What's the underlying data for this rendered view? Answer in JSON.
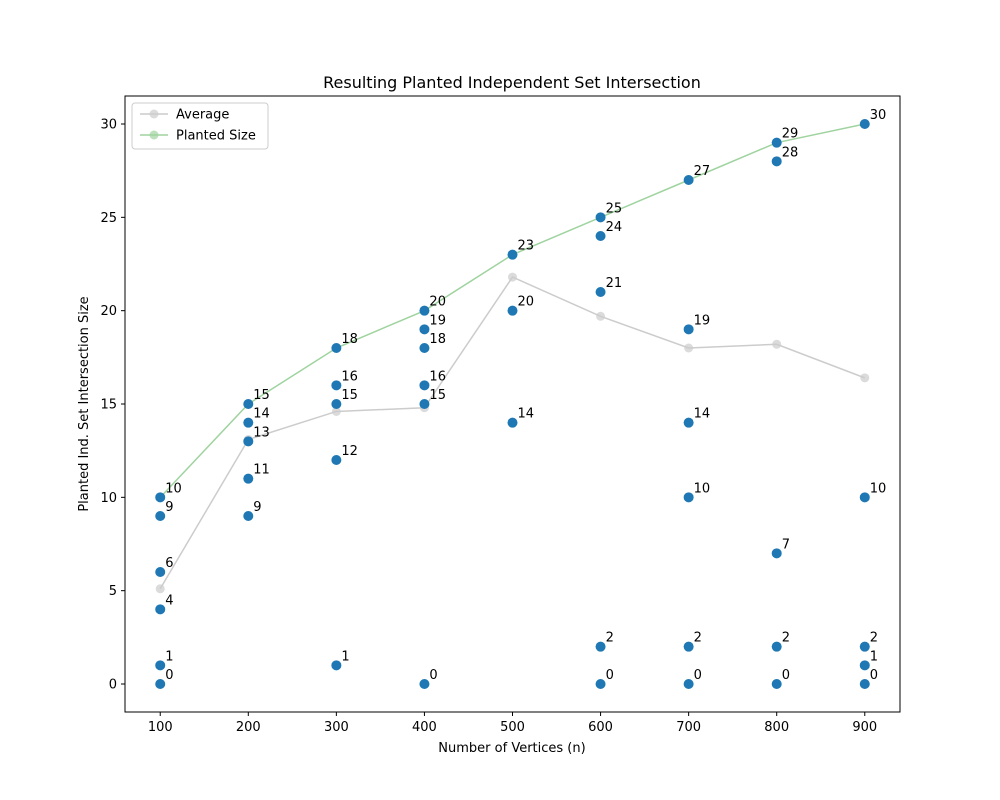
{
  "chart_data": {
    "type": "scatter",
    "title": "Resulting Planted Independent Set Intersection",
    "xlabel": "Number of Vertices (n)",
    "ylabel": "Planted Ind. Set Intersection Size",
    "xlim": [
      60,
      940
    ],
    "ylim": [
      -1.5,
      31.5
    ],
    "x_ticks": [
      100,
      200,
      300,
      400,
      500,
      600,
      700,
      800,
      900
    ],
    "y_ticks": [
      0,
      5,
      10,
      15,
      20,
      25,
      30
    ],
    "legend_position": "upper-left",
    "grid": false,
    "point_color": "#1f77b4",
    "series": [
      {
        "name": "Average",
        "type": "line",
        "color": "#cccccc",
        "x": [
          100,
          200,
          300,
          400,
          500,
          600,
          700,
          800,
          900
        ],
        "values": [
          5.1,
          13.1,
          14.6,
          14.8,
          21.8,
          19.7,
          18.0,
          18.2,
          16.4
        ]
      },
      {
        "name": "Planted Size",
        "type": "line",
        "color": "#9fd39f",
        "x": [
          100,
          200,
          300,
          400,
          500,
          600,
          700,
          800,
          900
        ],
        "values": [
          10,
          15,
          18,
          20,
          23,
          25,
          27,
          29,
          30
        ]
      }
    ],
    "points": [
      {
        "x": 100,
        "y": 10
      },
      {
        "x": 100,
        "y": 9
      },
      {
        "x": 100,
        "y": 6
      },
      {
        "x": 100,
        "y": 4
      },
      {
        "x": 100,
        "y": 1
      },
      {
        "x": 100,
        "y": 0
      },
      {
        "x": 200,
        "y": 15
      },
      {
        "x": 200,
        "y": 14
      },
      {
        "x": 200,
        "y": 13
      },
      {
        "x": 200,
        "y": 11
      },
      {
        "x": 200,
        "y": 9
      },
      {
        "x": 300,
        "y": 18
      },
      {
        "x": 300,
        "y": 16
      },
      {
        "x": 300,
        "y": 15
      },
      {
        "x": 300,
        "y": 12
      },
      {
        "x": 300,
        "y": 1
      },
      {
        "x": 400,
        "y": 20
      },
      {
        "x": 400,
        "y": 19
      },
      {
        "x": 400,
        "y": 18
      },
      {
        "x": 400,
        "y": 16
      },
      {
        "x": 400,
        "y": 15
      },
      {
        "x": 400,
        "y": 0
      },
      {
        "x": 500,
        "y": 23
      },
      {
        "x": 500,
        "y": 20
      },
      {
        "x": 500,
        "y": 14
      },
      {
        "x": 600,
        "y": 25
      },
      {
        "x": 600,
        "y": 24
      },
      {
        "x": 600,
        "y": 21
      },
      {
        "x": 600,
        "y": 2
      },
      {
        "x": 600,
        "y": 0
      },
      {
        "x": 700,
        "y": 27
      },
      {
        "x": 700,
        "y": 19
      },
      {
        "x": 700,
        "y": 14
      },
      {
        "x": 700,
        "y": 10
      },
      {
        "x": 700,
        "y": 2
      },
      {
        "x": 700,
        "y": 0
      },
      {
        "x": 800,
        "y": 29
      },
      {
        "x": 800,
        "y": 28
      },
      {
        "x": 800,
        "y": 7
      },
      {
        "x": 800,
        "y": 2
      },
      {
        "x": 800,
        "y": 0
      },
      {
        "x": 900,
        "y": 30
      },
      {
        "x": 900,
        "y": 10
      },
      {
        "x": 900,
        "y": 2
      },
      {
        "x": 900,
        "y": 1
      },
      {
        "x": 900,
        "y": 0
      }
    ]
  }
}
